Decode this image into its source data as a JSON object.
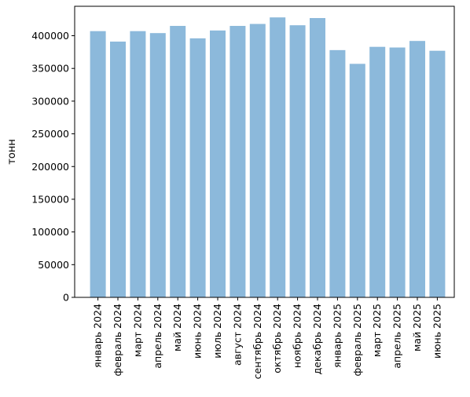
{
  "chart_data": {
    "type": "bar",
    "title": "",
    "xlabel": "",
    "ylabel": "тонн",
    "ylim": [
      0,
      445000
    ],
    "yticks": [
      0,
      50000,
      100000,
      150000,
      200000,
      250000,
      300000,
      350000,
      400000
    ],
    "ytick_labels": [
      "0",
      "50000",
      "100000",
      "150000",
      "200000",
      "250000",
      "300000",
      "350000",
      "400000"
    ],
    "grid": false,
    "legend": "none",
    "bar_color": "#8cb9db",
    "categories": [
      "январь 2024",
      "февраль 2024",
      "март 2024",
      "апрель 2024",
      "май 2024",
      "июнь 2024",
      "июль 2024",
      "август 2024",
      "сентябрь 2024",
      "октябрь 2024",
      "ноябрь 2024",
      "декабрь 2024",
      "январь 2025",
      "февраль 2025",
      "март 2025",
      "апрель 2025",
      "май 2025",
      "июнь 2025"
    ],
    "values": [
      407000,
      391000,
      407000,
      404000,
      415000,
      396000,
      408000,
      415000,
      418000,
      428000,
      416000,
      427000,
      378000,
      357000,
      383000,
      382000,
      392000,
      377000
    ]
  }
}
